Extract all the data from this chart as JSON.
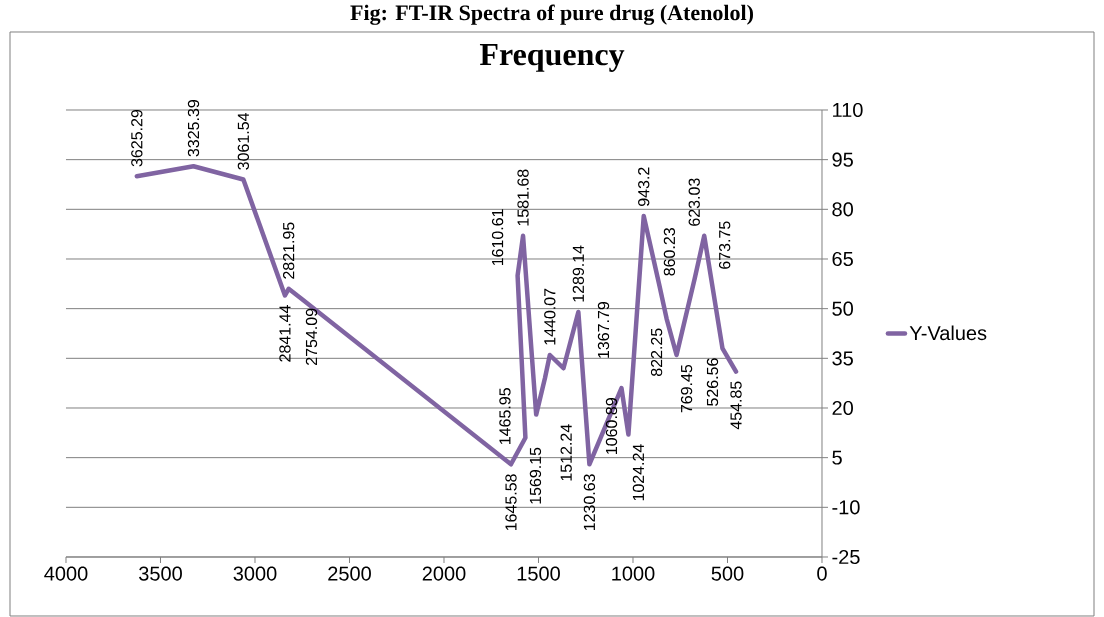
{
  "chart_data": {
    "type": "line",
    "title": "Fig: FT-IR Spectra of pure drug (Atenolol)",
    "subtitle": "Frequency",
    "x": [
      3625.29,
      3325.39,
      3061.54,
      2841.44,
      2821.95,
      2754.09,
      1645.58,
      1569.15,
      1610.61,
      1581.68,
      1512.24,
      1465.95,
      1440.07,
      1367.79,
      1289.14,
      1230.63,
      1060.89,
      1024.24,
      943.2,
      860.23,
      822.25,
      769.45,
      673.75,
      623.03,
      526.56,
      454.85
    ],
    "series": [
      {
        "name": "Y-Values",
        "color": "#8064a2",
        "values": [
          90,
          93,
          89,
          54,
          56,
          53,
          3,
          11,
          60,
          72,
          18,
          29,
          36,
          32,
          49,
          3,
          26,
          12,
          78,
          57,
          47,
          36,
          59,
          72,
          38,
          31
        ]
      }
    ],
    "annotations": [
      {
        "text": "3625.29",
        "x": 3625.29,
        "y": 90
      },
      {
        "text": "3325.39",
        "x": 3325.39,
        "y": 93
      },
      {
        "text": "3061.54",
        "x": 3061.54,
        "y": 89
      },
      {
        "text": "2841.44",
        "x": 2841.44,
        "y": 54
      },
      {
        "text": "2821.95",
        "x": 2821.95,
        "y": 56
      },
      {
        "text": "2754.09",
        "x": 2754.09,
        "y": 53
      },
      {
        "text": "1645.58",
        "x": 1645.58,
        "y": 3
      },
      {
        "text": "1569.15",
        "x": 1569.15,
        "y": 11
      },
      {
        "text": "1610.61",
        "x": 1610.61,
        "y": 60
      },
      {
        "text": "1581.68",
        "x": 1581.68,
        "y": 72
      },
      {
        "text": "1512.24",
        "x": 1512.24,
        "y": 18
      },
      {
        "text": "1465.95",
        "x": 1465.95,
        "y": 29
      },
      {
        "text": "1440.07",
        "x": 1440.07,
        "y": 36
      },
      {
        "text": "1367.79",
        "x": 1367.79,
        "y": 32
      },
      {
        "text": "1289.14",
        "x": 1289.14,
        "y": 49
      },
      {
        "text": "1230.63",
        "x": 1230.63,
        "y": 3
      },
      {
        "text": "1060.89",
        "x": 1060.89,
        "y": 26
      },
      {
        "text": "1024.24",
        "x": 1024.24,
        "y": 12
      },
      {
        "text": "943.2",
        "x": 943.2,
        "y": 78
      },
      {
        "text": "860.23",
        "x": 860.23,
        "y": 57
      },
      {
        "text": "822.25",
        "x": 822.25,
        "y": 47
      },
      {
        "text": "769.45",
        "x": 769.45,
        "y": 36
      },
      {
        "text": "673.75",
        "x": 673.75,
        "y": 59
      },
      {
        "text": "623.03",
        "x": 623.03,
        "y": 72
      },
      {
        "text": "526.56",
        "x": 526.56,
        "y": 38
      },
      {
        "text": "454.85",
        "x": 454.85,
        "y": 31
      }
    ],
    "xlim": [
      4000,
      0
    ],
    "xticks": [
      4000,
      3500,
      3000,
      2500,
      2000,
      1500,
      1000,
      500,
      0
    ],
    "ylim": [
      -25,
      110
    ],
    "yticks": [
      -25,
      -10,
      5,
      20,
      35,
      50,
      65,
      80,
      95,
      110
    ],
    "grid": "y",
    "legend": "right",
    "marker": "none",
    "line_style": "solid"
  }
}
